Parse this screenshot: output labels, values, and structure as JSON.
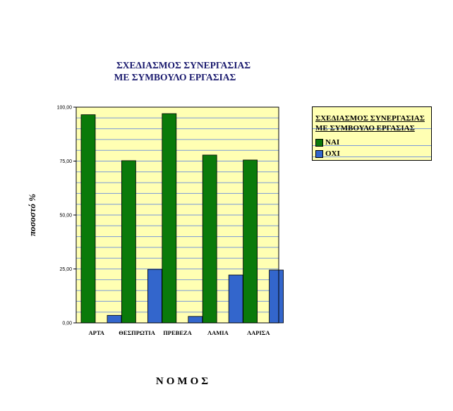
{
  "chart_data": {
    "type": "bar",
    "title": [
      "ΣΧΕΔΙΑΣΜΟΣ ΣΥΝΕΡΓΑΣΙΑΣ",
      "ΜΕ ΣΥΜΒΟΥΛΟ ΕΡΓΑΣΙΑΣ"
    ],
    "xlabel": "ΝΟΜΟΣ",
    "ylabel": "ποσοστό %",
    "categories": [
      "ΑΡΤΑ",
      "ΘΕΣΠΡΩΤΙΑ",
      "ΠΡΕΒΕΖΑ",
      "ΛΑΜΙΑ",
      "ΛΑΡΙΣΑ"
    ],
    "series": [
      {
        "name": "ΝΑΙ",
        "values": [
          96.5,
          75.2,
          97.0,
          77.8,
          75.5
        ]
      },
      {
        "name": "ΟΧΙ",
        "values": [
          3.5,
          24.8,
          3.0,
          22.2,
          24.5
        ]
      }
    ],
    "ylim": [
      0,
      100
    ],
    "yticks": [
      0,
      25,
      50,
      75,
      100
    ],
    "ytick_labels": [
      "0,00",
      "25,00",
      "50,00",
      "75,00",
      "100,00"
    ],
    "grid": true,
    "legend_title": [
      "ΣΧΕΔΙΑΣΜΟΣ ΣΥΝΕΡΓΑΣΙΑΣ",
      "ΜΕ ΣΥΜΒΟΥΛΟ ΕΡΓΑΣΙΑΣ"
    ],
    "legend_position": "top-right",
    "colors": {
      "plot_background": "#ffffb3",
      "gridline": "#7a9ad8",
      "series": [
        "#0a7a0a",
        "#3366cc"
      ]
    }
  }
}
